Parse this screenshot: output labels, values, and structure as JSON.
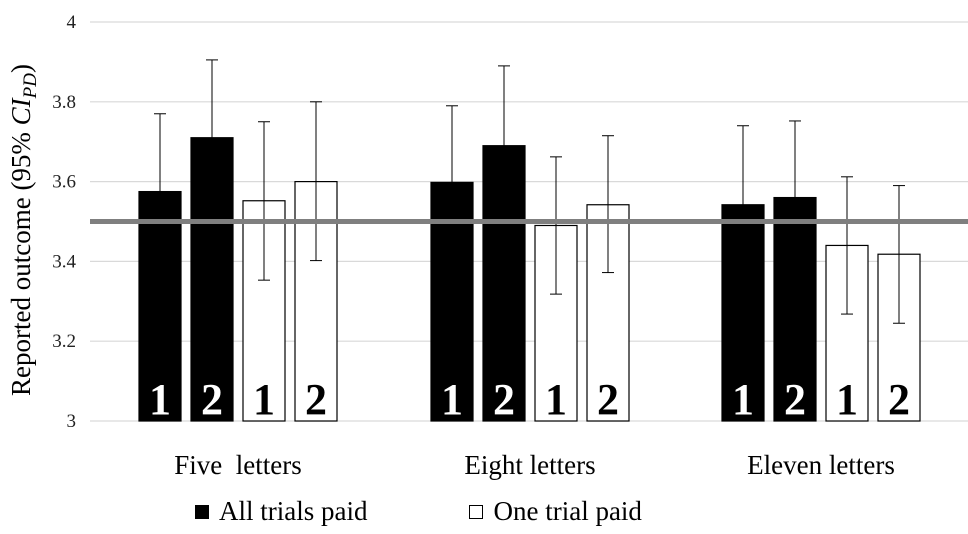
{
  "chart_data": {
    "type": "bar",
    "ylabel": "Reported outcome (95% ",
    "ylabel_ci": "CI",
    "ylabel_sub": "PD",
    "ylabel_close": ")",
    "ylim": [
      3,
      4
    ],
    "yticks": [
      "3",
      "3.2",
      "3.4",
      "3.6",
      "3.8",
      "4"
    ],
    "ytick_values": [
      3,
      3.2,
      3.4,
      3.6,
      3.8,
      4
    ],
    "grid": true,
    "categories": [
      "Five  letters",
      "Eight letters",
      "Eleven letters"
    ],
    "reference_line": 3.5,
    "series": [
      {
        "name": "All trials paid",
        "condition": "1",
        "fill": "#000000",
        "values": [
          3.575,
          3.598,
          3.542
        ],
        "ci_upper": [
          3.77,
          3.79,
          3.74
        ],
        "ci_lower": [
          3.0,
          3.0,
          3.0
        ]
      },
      {
        "name": "All trials paid",
        "condition": "2",
        "fill": "#000000",
        "values": [
          3.71,
          3.69,
          3.56
        ],
        "ci_upper": [
          3.905,
          3.89,
          3.752
        ],
        "ci_lower": [
          3.0,
          3.0,
          3.0
        ]
      },
      {
        "name": "One trial paid",
        "condition": "1",
        "fill": "#ffffff",
        "values": [
          3.552,
          3.49,
          3.44
        ],
        "ci_upper": [
          3.75,
          3.662,
          3.612
        ],
        "ci_lower": [
          3.353,
          3.318,
          3.268
        ]
      },
      {
        "name": "One trial paid",
        "condition": "2",
        "fill": "#ffffff",
        "values": [
          3.6,
          3.542,
          3.418
        ],
        "ci_upper": [
          3.8,
          3.715,
          3.59
        ],
        "ci_lower": [
          3.402,
          3.372,
          3.245
        ]
      }
    ],
    "legend": [
      {
        "label": "All trials paid",
        "fill": "#000000"
      },
      {
        "label": "One trial paid",
        "fill": "#ffffff"
      }
    ],
    "legend_position": "bottom",
    "colors": {
      "grid": "#d9d9d9",
      "reference": "#7f7f7f",
      "bar_dark": "#000000",
      "bar_light": "#ffffff"
    }
  }
}
